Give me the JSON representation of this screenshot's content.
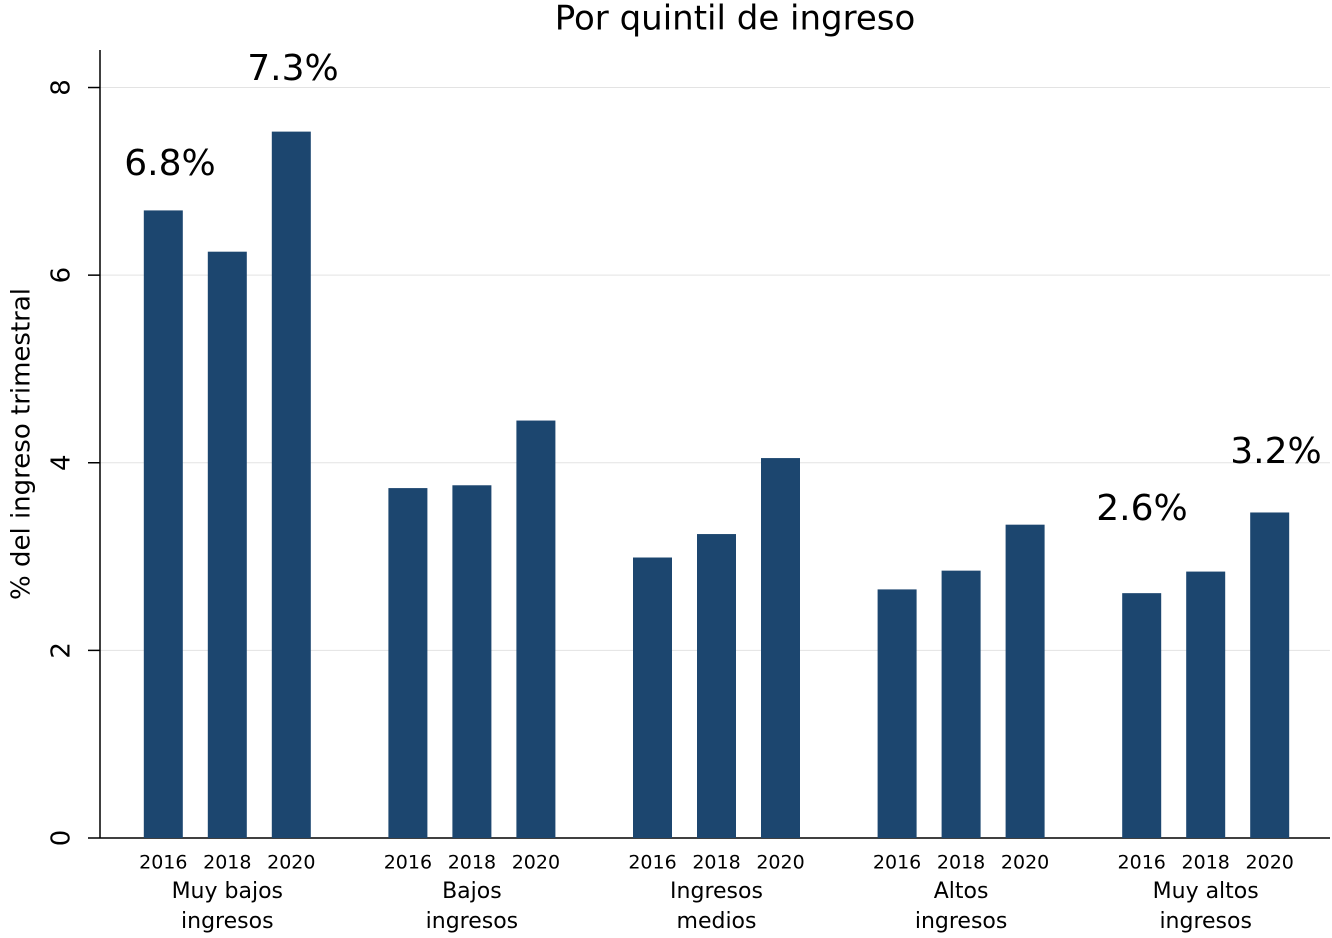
{
  "chart_data": {
    "type": "bar",
    "title": "Por quintil de ingreso",
    "y_label": "% del ingreso trimestral",
    "categories": [
      [
        "Muy bajos",
        "ingresos"
      ],
      [
        "Bajos",
        "ingresos"
      ],
      [
        "Ingresos",
        "medios"
      ],
      [
        "Altos",
        "ingresos"
      ],
      [
        "Muy altos",
        "ingresos"
      ]
    ],
    "series": [
      {
        "name": "2016",
        "color": "#1c466f",
        "values": [
          6.69,
          3.73,
          2.99,
          2.65,
          2.61
        ]
      },
      {
        "name": "2018",
        "color": "#1c466f",
        "values": [
          6.25,
          3.76,
          3.24,
          2.85,
          2.84
        ]
      },
      {
        "name": "2020",
        "color": "#1c466f",
        "values": [
          7.53,
          4.45,
          4.05,
          3.34,
          3.47
        ]
      }
    ],
    "annotations": [
      "6.8%",
      "7.3%",
      "2.6%",
      "3.2%"
    ],
    "ylim": [
      0,
      8.4
    ],
    "yticks": [
      0,
      2,
      4,
      6,
      8
    ],
    "grid": true
  }
}
